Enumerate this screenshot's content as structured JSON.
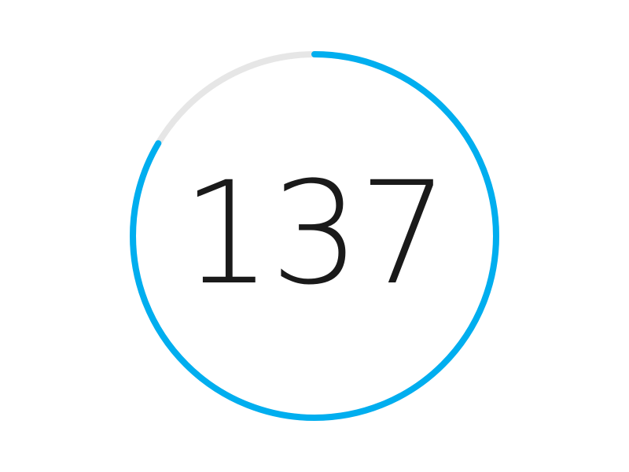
{
  "counter": {
    "value": "137",
    "progress_fraction": 0.835
  },
  "colors": {
    "progress": "#00aeef",
    "track": "#e6e6e6",
    "text": "#1a1a1a",
    "background": "#ffffff"
  }
}
